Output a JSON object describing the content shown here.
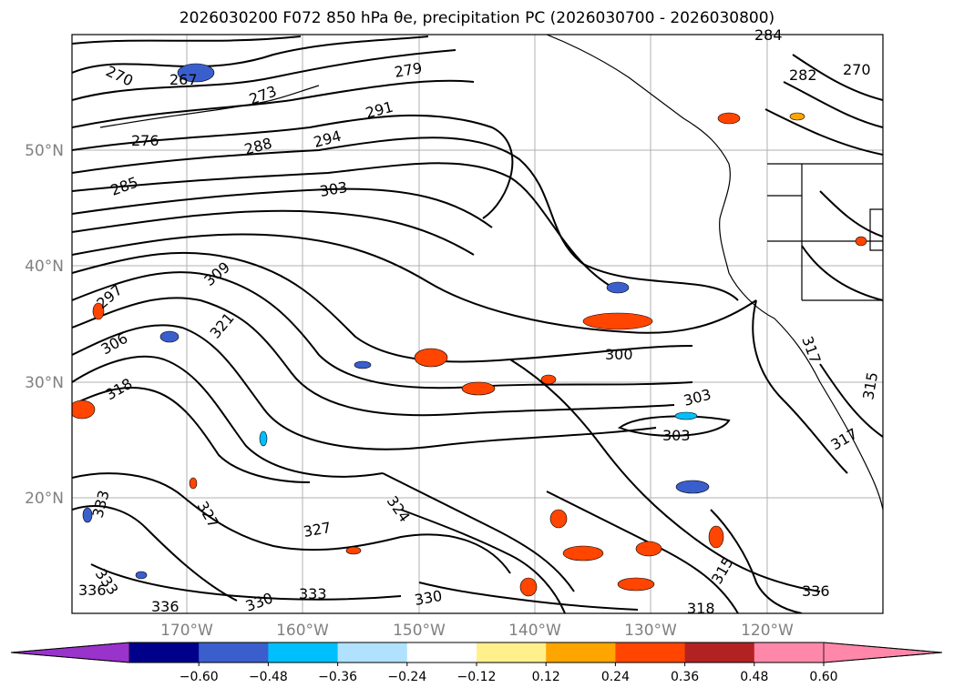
{
  "title": "2026030200 F072 850 hPa θe, precipitation PC (2026030700 - 2026030800)",
  "map": {
    "latitude_labels": [
      "50°N",
      "40°N",
      "30°N",
      "20°N"
    ],
    "longitude_labels": [
      "170°W",
      "160°W",
      "150°W",
      "140°W",
      "130°W",
      "120°W"
    ],
    "contour_labels": [
      "270",
      "267",
      "273",
      "279",
      "284",
      "282",
      "270",
      "276",
      "288",
      "291",
      "294",
      "285",
      "303",
      "309",
      "297",
      "321",
      "306",
      "318",
      "300",
      "303",
      "303",
      "333",
      "327",
      "324",
      "327",
      "333",
      "336",
      "336",
      "330",
      "333",
      "330",
      "315",
      "318",
      "336",
      "317",
      "315",
      "317"
    ],
    "colors": {
      "land_outline": "#000000",
      "grid": "#b0b0b0",
      "contour": "#000000"
    }
  },
  "colorbar": {
    "tick_labels": [
      "−0.60",
      "−0.48",
      "−0.36",
      "−0.24",
      "−0.12",
      "0.12",
      "0.24",
      "0.36",
      "0.48",
      "0.60"
    ],
    "colors": [
      "#9933cc",
      "#00008b",
      "#3a5fcd",
      "#00bfff",
      "#b0e2ff",
      "#ffffff",
      "#fff08c",
      "#ffa500",
      "#ff4500",
      "#b22222",
      "#ff88aa",
      "#ff88aa"
    ]
  }
}
